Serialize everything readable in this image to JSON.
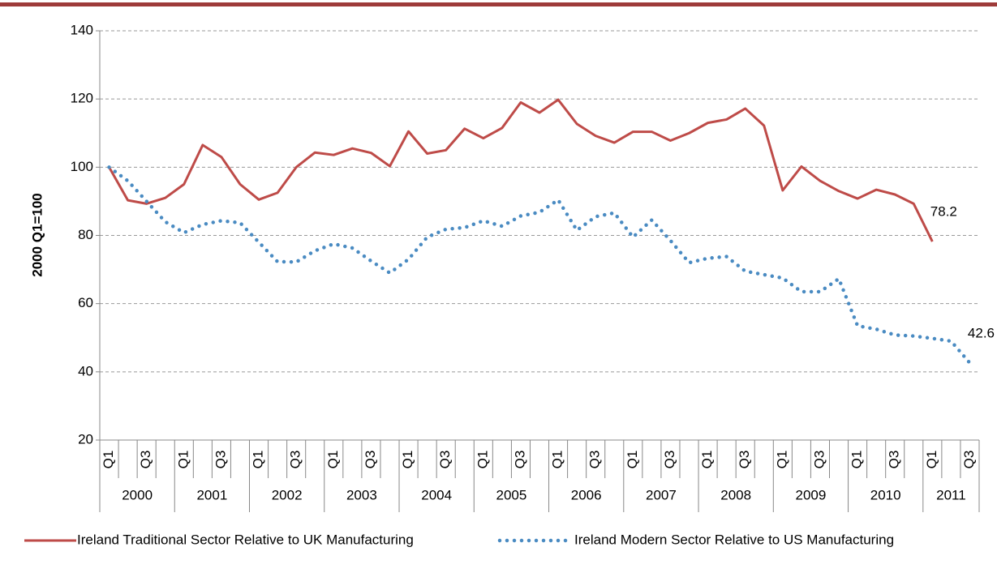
{
  "chart_data": {
    "type": "line",
    "y_label": "2000 Q1=100",
    "categories": [
      "Q1",
      null,
      "Q3",
      null,
      "Q1",
      null,
      "Q3",
      null,
      "Q1",
      null,
      "Q3",
      null,
      "Q1",
      null,
      "Q3",
      null,
      "Q1",
      null,
      "Q3",
      null,
      "Q1",
      null,
      "Q3",
      null,
      "Q1",
      null,
      "Q3",
      null,
      "Q1",
      null,
      "Q3",
      null,
      "Q1",
      null,
      "Q3",
      null,
      "Q1",
      null,
      "Q3",
      null,
      "Q1",
      null,
      "Q3",
      null,
      "Q1",
      null,
      "Q3"
    ],
    "year_groups": [
      "2000",
      "2001",
      "2002",
      "2003",
      "2004",
      "2005",
      "2006",
      "2007",
      "2008",
      "2009",
      "2010",
      "2011"
    ],
    "ylim": [
      20,
      140
    ],
    "yticks": [
      20,
      40,
      60,
      80,
      100,
      120,
      140
    ],
    "grid": true,
    "legend": "bottom",
    "label_last": true,
    "series": [
      {
        "name": "Ireland Traditional Sector Relative to UK Manufacturing",
        "color": "#be4b48",
        "style": "solid",
        "values": [
          100,
          90.3,
          89.3,
          91,
          95,
          106.5,
          103,
          95,
          90.5,
          92.5,
          100,
          104.3,
          103.6,
          105.5,
          104.2,
          100.3,
          110.5,
          104,
          105,
          111.3,
          108.5,
          111.5,
          119,
          116,
          119.8,
          112.7,
          109.2,
          107.2,
          110.4,
          110.4,
          107.8,
          110,
          113,
          114,
          117.2,
          112.2,
          93.2,
          100.2,
          96,
          93,
          90.8,
          93.4,
          92,
          89.3,
          78.2,
          null,
          null
        ]
      },
      {
        "name": "Ireland Modern Sector Relative to US Manufacturing",
        "color": "#4a8bc2",
        "style": "dotted",
        "values": [
          100,
          96,
          90,
          84,
          80.8,
          83.2,
          84.3,
          83.7,
          78,
          72.3,
          72.2,
          75.5,
          77.5,
          76.3,
          72.5,
          69,
          73,
          79.5,
          81.8,
          82.3,
          84.3,
          82.7,
          85.7,
          86.8,
          90.4,
          81.5,
          85.5,
          86.6,
          79.5,
          84.5,
          78.5,
          72,
          73.3,
          73.8,
          69.5,
          68.5,
          67.5,
          63.5,
          63.5,
          67.3,
          53.5,
          52.5,
          50.8,
          50.5,
          49.8,
          49,
          42.6
        ]
      }
    ]
  }
}
